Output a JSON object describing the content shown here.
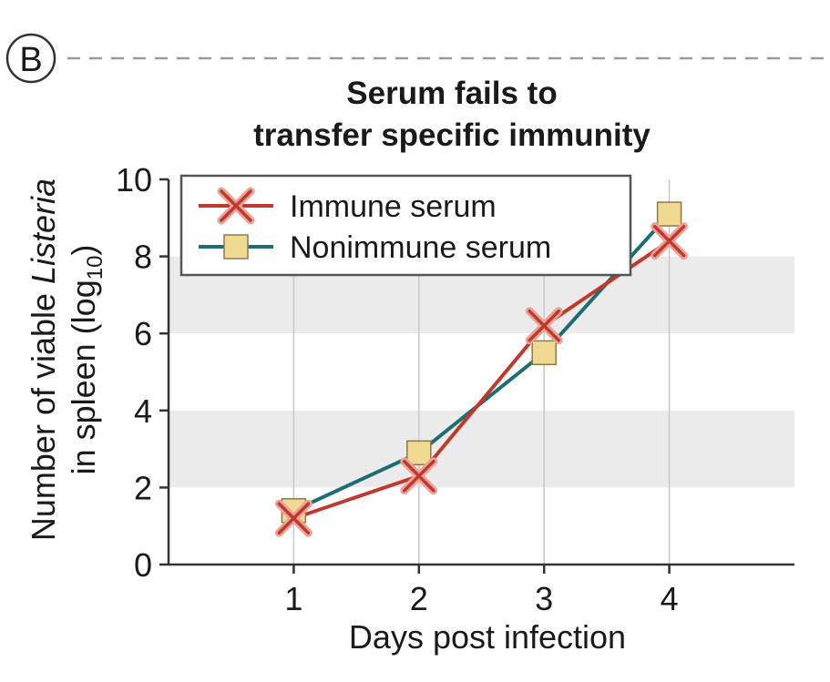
{
  "panel_label": "B",
  "chart_data": {
    "type": "line",
    "title_lines": [
      "Serum fails to",
      "transfer specific immunity"
    ],
    "xlabel": "Days  post infection",
    "ylabel": {
      "line1_before": "Number of viable ",
      "line1_italic": "Listeria",
      "line2_before": "in spleen (log",
      "line2_sub": "10",
      "line2_after": ")"
    },
    "x": [
      1,
      2,
      3,
      4
    ],
    "xticks": [
      "1",
      "2",
      "3",
      "4"
    ],
    "yticks": [
      "0",
      "2",
      "4",
      "6",
      "8",
      "10"
    ],
    "xlim": [
      0,
      5
    ],
    "ylim": [
      0,
      10
    ],
    "shaded_bands": [
      [
        2,
        4
      ],
      [
        6,
        8
      ]
    ],
    "grid": "vertical",
    "legend_position": "top-left",
    "series": [
      {
        "name": "Immune serum",
        "values": [
          1.2,
          2.3,
          6.2,
          8.4
        ],
        "color": "#c0392b",
        "marker": "x"
      },
      {
        "name": "Nonimmune serum",
        "values": [
          1.4,
          2.9,
          5.5,
          9.1
        ],
        "color": "#1c6e74",
        "marker": "square",
        "marker_fill": "#f0d990"
      }
    ]
  }
}
